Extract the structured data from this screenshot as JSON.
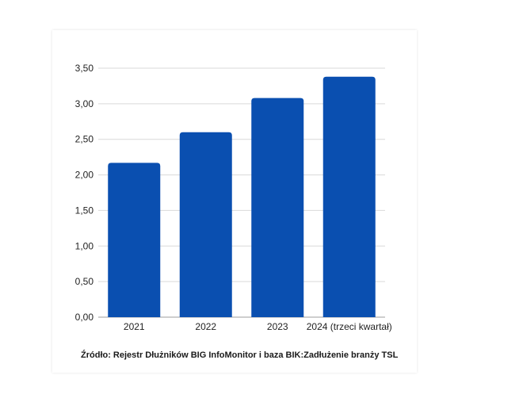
{
  "colors": {
    "bar": "#0a4fb0",
    "grid": "#d9d9d9",
    "axis": "#9e9e9e",
    "text": "#222222"
  },
  "chart_data": {
    "type": "bar",
    "categories": [
      "2021",
      "2022",
      "2023",
      "2024 (trzeci kwartał)"
    ],
    "values": [
      2.17,
      2.6,
      3.08,
      3.38
    ],
    "ylim": [
      0,
      3.5
    ],
    "yticks": [
      "0,00",
      "0,50",
      "1,00",
      "1,50",
      "2,00",
      "2,50",
      "3,00",
      "3,50"
    ],
    "grid": true,
    "title": "",
    "xlabel": "",
    "ylabel": ""
  },
  "source_note": "Źródło: Rejestr Dłużników BIG InfoMonitor i baza BIK:Zadłużenie branży TSL"
}
